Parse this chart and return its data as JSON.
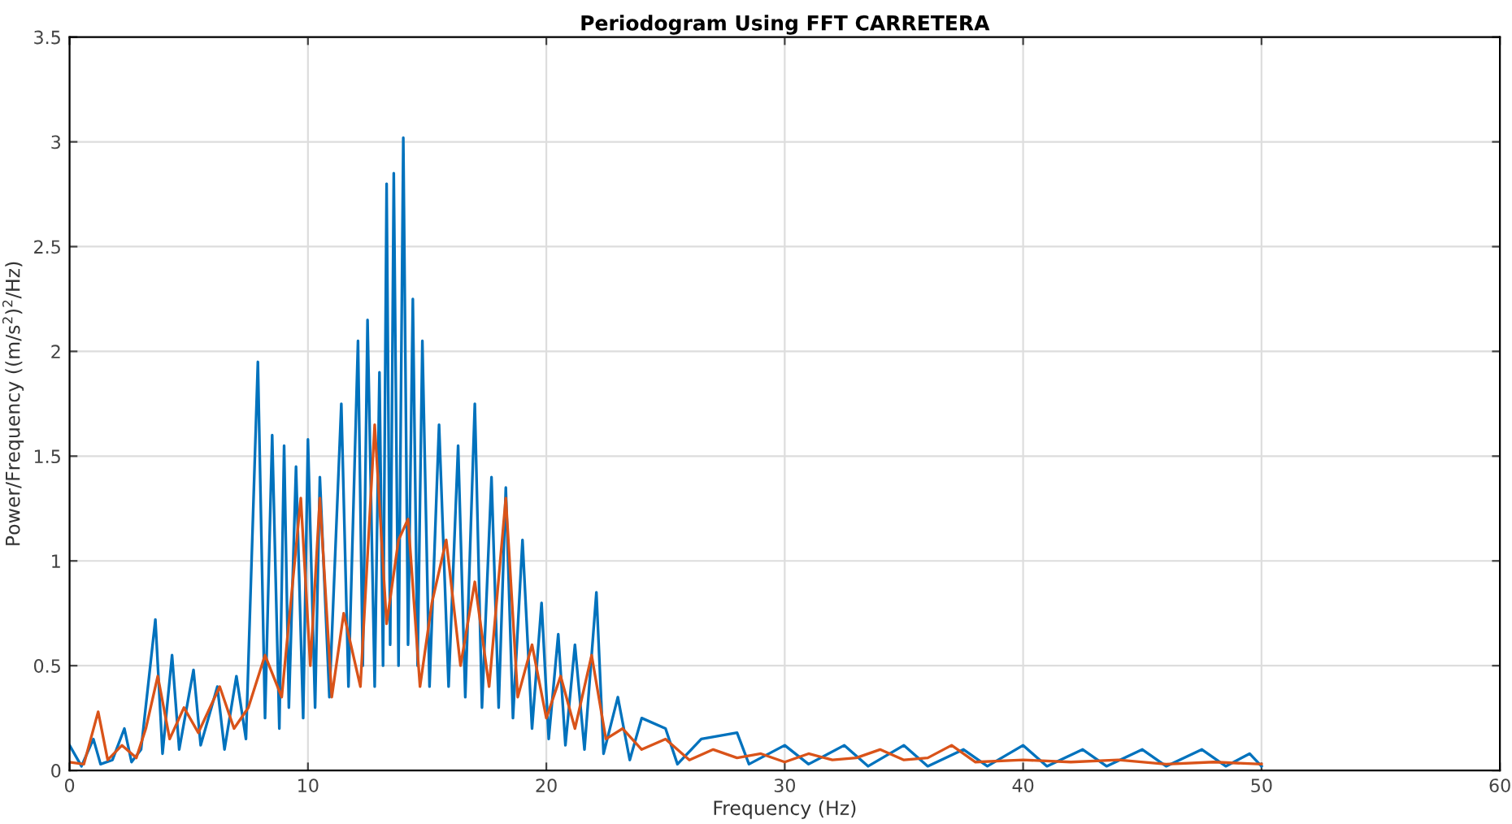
{
  "chart_data": {
    "type": "line",
    "title": "Periodogram Using FFT CARRETERA",
    "xlabel": "Frequency (Hz)",
    "ylabel": "Power/Frequency ((m/s$^{2}$)$^{2}$/Hz)",
    "xlim": [
      0,
      60
    ],
    "xticks": [
      0,
      10,
      20,
      30,
      40,
      50,
      60
    ],
    "ylim": [
      0,
      3.5
    ],
    "yticks": [
      0,
      0.5,
      1,
      1.5,
      2,
      2.5,
      3,
      3.5
    ],
    "grid": true,
    "series": [
      {
        "color": "#0072bd",
        "x": [
          0,
          0.5,
          1.0,
          1.3,
          1.8,
          2.3,
          2.6,
          3.0,
          3.6,
          3.9,
          4.3,
          4.6,
          5.2,
          5.5,
          6.2,
          6.5,
          7.0,
          7.4,
          7.9,
          8.2,
          8.5,
          8.8,
          9.0,
          9.2,
          9.5,
          9.8,
          10.0,
          10.3,
          10.5,
          10.9,
          11.4,
          11.7,
          12.1,
          12.3,
          12.5,
          12.8,
          13.0,
          13.15,
          13.3,
          13.45,
          13.6,
          13.8,
          14.0,
          14.2,
          14.4,
          14.6,
          14.8,
          15.1,
          15.5,
          15.9,
          16.3,
          16.6,
          17.0,
          17.3,
          17.7,
          18.0,
          18.3,
          18.6,
          19.0,
          19.4,
          19.8,
          20.1,
          20.5,
          20.8,
          21.2,
          21.6,
          22.1,
          22.4,
          23.0,
          23.5,
          24.0,
          25.0,
          25.5,
          26.5,
          28.0,
          28.5,
          30.0,
          31.0,
          32.5,
          33.5,
          35.0,
          36.0,
          37.5,
          38.5,
          40.0,
          41.0,
          42.5,
          43.5,
          45.0,
          46.0,
          47.5,
          48.5,
          49.5,
          50.0
        ],
        "values": [
          0.12,
          0.02,
          0.15,
          0.03,
          0.05,
          0.2,
          0.04,
          0.1,
          0.72,
          0.08,
          0.55,
          0.1,
          0.48,
          0.12,
          0.4,
          0.1,
          0.45,
          0.15,
          1.95,
          0.25,
          1.6,
          0.2,
          1.55,
          0.3,
          1.45,
          0.25,
          1.58,
          0.3,
          1.4,
          0.35,
          1.75,
          0.4,
          2.05,
          0.5,
          2.15,
          0.4,
          1.9,
          0.5,
          2.8,
          0.6,
          2.85,
          0.5,
          3.02,
          0.6,
          2.25,
          0.5,
          2.05,
          0.4,
          1.65,
          0.4,
          1.55,
          0.35,
          1.75,
          0.3,
          1.4,
          0.3,
          1.35,
          0.25,
          1.1,
          0.2,
          0.8,
          0.15,
          0.65,
          0.12,
          0.6,
          0.1,
          0.85,
          0.08,
          0.35,
          0.05,
          0.25,
          0.2,
          0.03,
          0.15,
          0.18,
          0.03,
          0.12,
          0.03,
          0.12,
          0.02,
          0.12,
          0.02,
          0.1,
          0.02,
          0.12,
          0.02,
          0.1,
          0.02,
          0.1,
          0.02,
          0.1,
          0.02,
          0.08,
          0.02
        ]
      },
      {
        "color": "#d95319",
        "x": [
          0,
          0.6,
          1.2,
          1.6,
          2.2,
          2.8,
          3.2,
          3.7,
          4.2,
          4.8,
          5.4,
          6.3,
          6.9,
          7.5,
          8.2,
          8.9,
          9.7,
          10.1,
          10.5,
          11.0,
          11.5,
          12.2,
          12.8,
          13.3,
          13.8,
          14.2,
          14.7,
          15.2,
          15.8,
          16.4,
          17.0,
          17.6,
          18.3,
          18.8,
          19.4,
          20.0,
          20.6,
          21.2,
          21.9,
          22.5,
          23.2,
          24.0,
          25.0,
          26.0,
          27.0,
          28.0,
          29.0,
          30.0,
          31.0,
          32.0,
          33.0,
          34.0,
          35.0,
          36.0,
          37.0,
          38.0,
          40.0,
          42.0,
          44.0,
          46.0,
          48.0,
          50.0
        ],
        "values": [
          0.04,
          0.03,
          0.28,
          0.05,
          0.12,
          0.06,
          0.2,
          0.45,
          0.15,
          0.3,
          0.18,
          0.4,
          0.2,
          0.3,
          0.55,
          0.35,
          1.3,
          0.5,
          1.3,
          0.35,
          0.75,
          0.4,
          1.65,
          0.7,
          1.1,
          1.2,
          0.4,
          0.8,
          1.1,
          0.5,
          0.9,
          0.4,
          1.3,
          0.35,
          0.6,
          0.25,
          0.45,
          0.2,
          0.55,
          0.15,
          0.2,
          0.1,
          0.15,
          0.05,
          0.1,
          0.06,
          0.08,
          0.04,
          0.08,
          0.05,
          0.06,
          0.1,
          0.05,
          0.06,
          0.12,
          0.04,
          0.05,
          0.04,
          0.05,
          0.03,
          0.04,
          0.03
        ]
      }
    ]
  }
}
